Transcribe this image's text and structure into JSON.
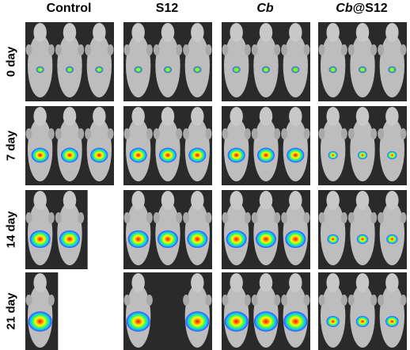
{
  "columns": [
    {
      "key": "control",
      "prefix": "Control",
      "italic": "",
      "suffix": ""
    },
    {
      "key": "s12",
      "prefix": "S12",
      "italic": "",
      "suffix": ""
    },
    {
      "key": "cb",
      "prefix": "",
      "italic": "Cb",
      "suffix": ""
    },
    {
      "key": "cbs12",
      "prefix": "",
      "italic": "Cb",
      "suffix": "@S12"
    }
  ],
  "rows": [
    {
      "key": "d0",
      "label": "0  day"
    },
    {
      "key": "d7",
      "label": "7  day"
    },
    {
      "key": "d14",
      "label": "14  day"
    },
    {
      "key": "d21",
      "label": "21  day"
    }
  ],
  "mice_visible": [
    [
      3,
      3,
      3,
      3
    ],
    [
      3,
      3,
      3,
      3
    ],
    [
      2,
      3,
      3,
      3
    ],
    [
      1,
      2,
      3,
      3
    ]
  ],
  "signal_colors": [
    "#3a3aff",
    "#00c8ff",
    "#40ff40",
    "#ffff00",
    "#ff8000",
    "#ff0000"
  ]
}
